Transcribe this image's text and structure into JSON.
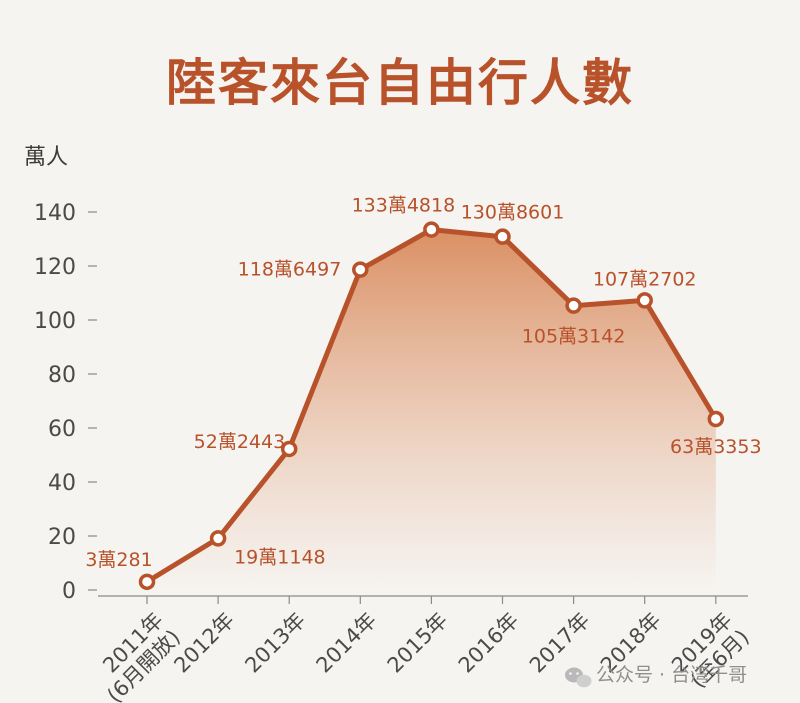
{
  "chart_data": {
    "type": "area",
    "title": "陸客來台自由行人數",
    "unit_label": "萬人",
    "ylim": [
      0,
      140
    ],
    "yticks": [
      0,
      20,
      40,
      60,
      80,
      100,
      120,
      140
    ],
    "grid": false,
    "categories": [
      [
        "2011年",
        "(6月開放)"
      ],
      [
        "2012年"
      ],
      [
        "2013年"
      ],
      [
        "2014年"
      ],
      [
        "2015年"
      ],
      [
        "2016年"
      ],
      [
        "2017年"
      ],
      [
        "2018年"
      ],
      [
        "2019年",
        "(至6月)"
      ]
    ],
    "series": [
      {
        "values": [
          3.0281,
          19.1148,
          52.2443,
          118.6497,
          133.4818,
          130.8601,
          105.3142,
          107.2702,
          63.3353
        ],
        "data_labels": [
          "3萬281",
          "19萬1148",
          "52萬2443",
          "118萬6497",
          "133萬4818",
          "130萬8601",
          "105萬3142",
          "107萬2702",
          "63萬3353"
        ],
        "color": "#b8522a"
      }
    ],
    "colors": {
      "accent": "#b8522a",
      "background": "#f6f4f1",
      "area_top": "#d98a5c",
      "area_bottom": "#f6f4f1"
    }
  },
  "watermark": {
    "icon": "wechat-icon",
    "text": "公众号 · 台湾千哥"
  }
}
